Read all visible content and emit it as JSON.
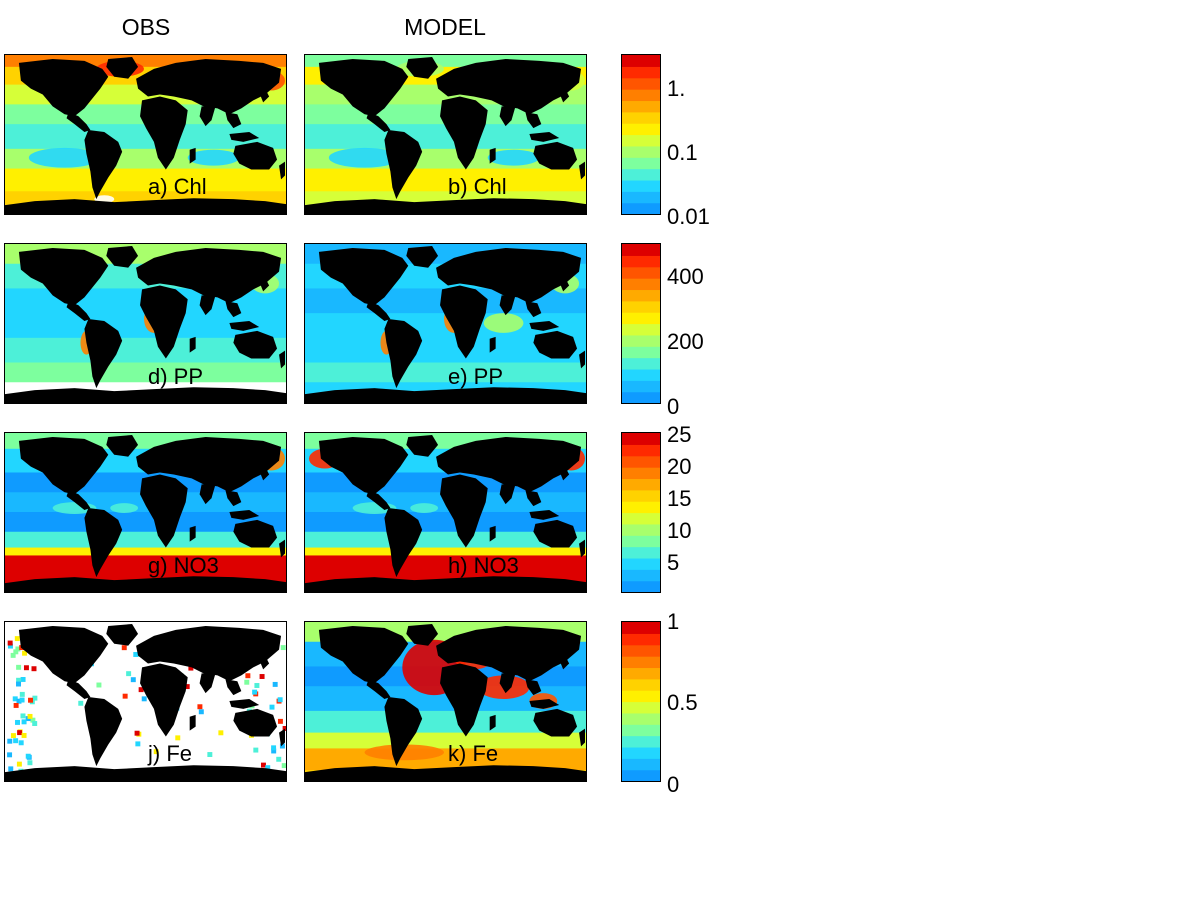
{
  "columns": {
    "obs_title": "OBS",
    "model_title": "MODEL"
  },
  "colors": {
    "land": "#000000",
    "missing": "#ffffff",
    "scale": [
      "#0f9bff",
      "#19b8ff",
      "#22d6ff",
      "#4df0d8",
      "#7dff9e",
      "#a8ff6c",
      "#d6ff38",
      "#fff000",
      "#ffd200",
      "#ffaa00",
      "#ff7f00",
      "#ff5500",
      "#ff2a00",
      "#dd0000"
    ]
  },
  "rows": [
    {
      "id": "chl",
      "obs_label": "a) Chl",
      "model_label": "b) Chl",
      "colorbar_ticks": [
        "1.",
        "0.1",
        "0.01"
      ]
    },
    {
      "id": "pp",
      "obs_label": "d) PP",
      "model_label": "e) PP",
      "colorbar_ticks": [
        "400",
        "200",
        "0"
      ]
    },
    {
      "id": "no3",
      "obs_label": "g) NO3",
      "model_label": "h) NO3",
      "colorbar_ticks": [
        "25",
        "20",
        "15",
        "10",
        "5"
      ]
    },
    {
      "id": "fe",
      "obs_label": "j) Fe",
      "model_label": "k) Fe",
      "colorbar_ticks": [
        "1",
        "0.5",
        "0"
      ]
    }
  ]
}
